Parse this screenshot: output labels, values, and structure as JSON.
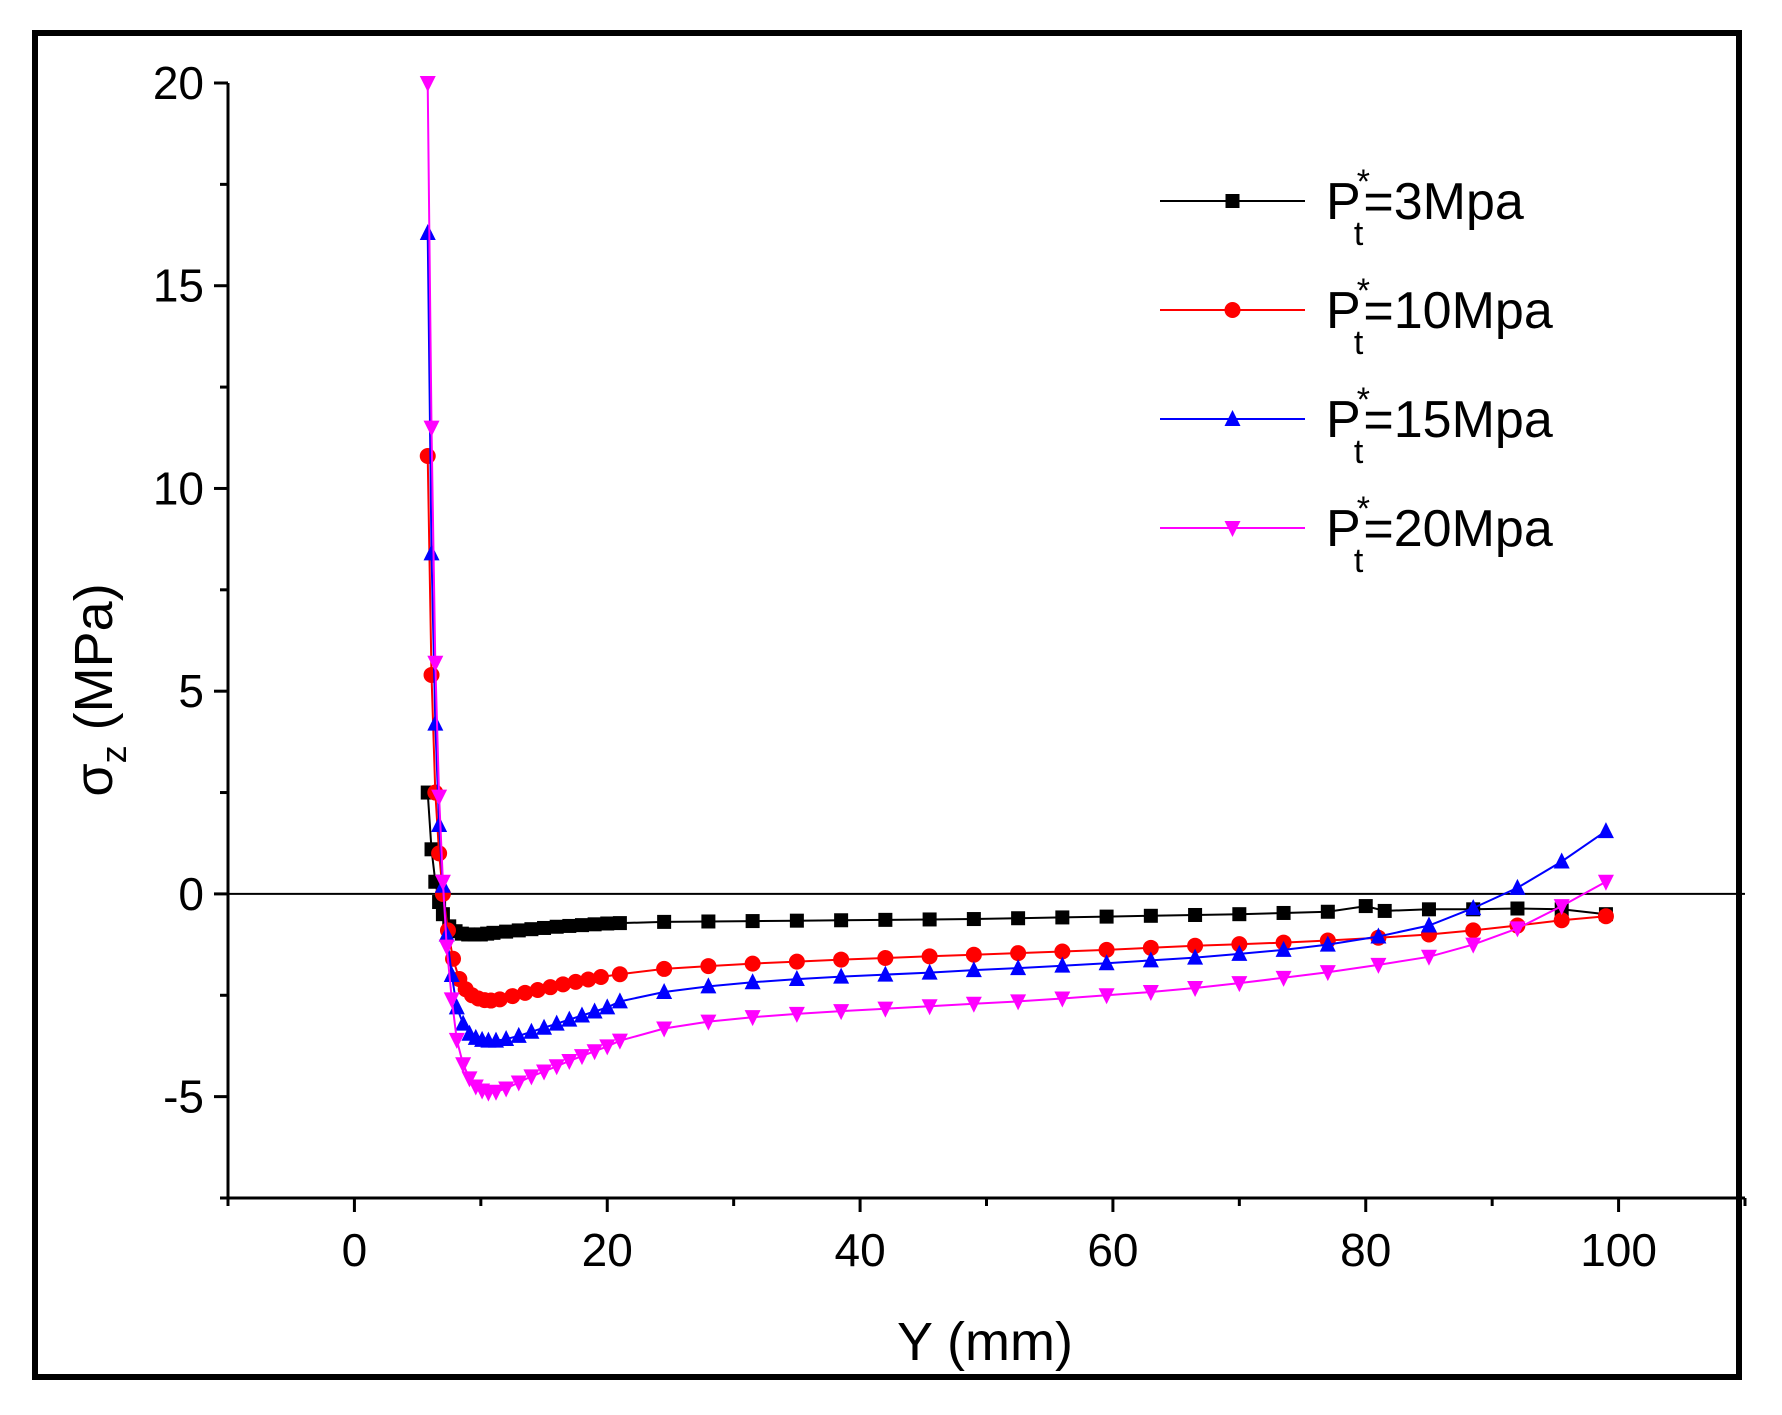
{
  "chart_data": {
    "type": "line",
    "title": "",
    "xlabel": "Y (mm)",
    "ylabel": "σz (MPa)",
    "ylabel_main": "σ",
    "ylabel_sub": "z",
    "ylabel_unit": " (MPa)",
    "xlim": [
      -10,
      110
    ],
    "ylim": [
      -7.5,
      20
    ],
    "xticks": [
      0,
      20,
      40,
      60,
      80,
      100
    ],
    "yticks": [
      -5,
      0,
      5,
      10,
      15,
      20
    ],
    "xtick_labels": [
      "0",
      "20",
      "40",
      "60",
      "80",
      "100"
    ],
    "ytick_labels": [
      "-5",
      "0",
      "5",
      "10",
      "15",
      "20"
    ],
    "reference_line_y": 0,
    "legend_position": "top-right",
    "series": [
      {
        "name": "Pt*=3Mpa",
        "label_main": "P",
        "label_sub": "t",
        "label_sup": "*",
        "label_rest": "=3Mpa",
        "color": "#000000",
        "marker": "square",
        "x": [
          5.8,
          6.1,
          6.4,
          6.7,
          7.0,
          7.5,
          8.0,
          8.5,
          9.0,
          9.5,
          10,
          10.5,
          11,
          12,
          13,
          14,
          15,
          16,
          17,
          18,
          19,
          20,
          21,
          24.5,
          28,
          31.5,
          35,
          38.5,
          42,
          45.5,
          49,
          52.5,
          56,
          59.5,
          63,
          66.5,
          70,
          73.5,
          77,
          80,
          81.5,
          85,
          88.5,
          92,
          95.5,
          99
        ],
        "y": [
          2.5,
          1.1,
          0.3,
          -0.2,
          -0.5,
          -0.8,
          -0.92,
          -0.98,
          -1.0,
          -1.0,
          -1.0,
          -0.98,
          -0.96,
          -0.93,
          -0.9,
          -0.87,
          -0.84,
          -0.81,
          -0.79,
          -0.77,
          -0.75,
          -0.73,
          -0.72,
          -0.69,
          -0.68,
          -0.67,
          -0.66,
          -0.65,
          -0.64,
          -0.63,
          -0.62,
          -0.6,
          -0.58,
          -0.56,
          -0.54,
          -0.52,
          -0.5,
          -0.47,
          -0.44,
          -0.3,
          -0.42,
          -0.38,
          -0.38,
          -0.36,
          -0.38,
          -0.5
        ]
      },
      {
        "name": "Pt*=10Mpa",
        "label_main": "P",
        "label_sub": "t",
        "label_sup": "*",
        "label_rest": "=10Mpa",
        "color": "#ff0000",
        "marker": "circle",
        "x": [
          5.8,
          6.1,
          6.4,
          6.7,
          7.0,
          7.4,
          7.8,
          8.3,
          8.8,
          9.3,
          9.8,
          10.3,
          10.8,
          11.5,
          12.5,
          13.5,
          14.5,
          15.5,
          16.5,
          17.5,
          18.5,
          19.5,
          21,
          24.5,
          28,
          31.5,
          35,
          38.5,
          42,
          45.5,
          49,
          52.5,
          56,
          59.5,
          63,
          66.5,
          70,
          73.5,
          77,
          81,
          85,
          88.5,
          92,
          95.5,
          99
        ],
        "y": [
          10.8,
          5.4,
          2.5,
          1.0,
          0.0,
          -0.9,
          -1.6,
          -2.1,
          -2.35,
          -2.5,
          -2.58,
          -2.62,
          -2.63,
          -2.6,
          -2.52,
          -2.44,
          -2.37,
          -2.3,
          -2.23,
          -2.17,
          -2.11,
          -2.05,
          -1.98,
          -1.85,
          -1.78,
          -1.72,
          -1.67,
          -1.62,
          -1.58,
          -1.54,
          -1.5,
          -1.46,
          -1.42,
          -1.38,
          -1.33,
          -1.28,
          -1.24,
          -1.2,
          -1.15,
          -1.08,
          -1.0,
          -0.9,
          -0.78,
          -0.65,
          -0.55
        ]
      },
      {
        "name": "Pt*=15Mpa",
        "label_main": "P",
        "label_sub": "t",
        "label_sup": "*",
        "label_rest": "=15Mpa",
        "color": "#0000ff",
        "marker": "triangle-up",
        "x": [
          5.8,
          6.1,
          6.4,
          6.7,
          7.0,
          7.3,
          7.7,
          8.1,
          8.6,
          9.1,
          9.6,
          10.1,
          10.6,
          11.2,
          12,
          13,
          14,
          15,
          16,
          17,
          18,
          19,
          20,
          21,
          24.5,
          28,
          31.5,
          35,
          38.5,
          42,
          45.5,
          49,
          52.5,
          56,
          59.5,
          63,
          66.5,
          70,
          73.5,
          77,
          81,
          85,
          88.5,
          92,
          95.5,
          99
        ],
        "y": [
          16.3,
          8.4,
          4.2,
          1.7,
          0.2,
          -1.0,
          -2.0,
          -2.8,
          -3.2,
          -3.45,
          -3.55,
          -3.6,
          -3.62,
          -3.62,
          -3.58,
          -3.5,
          -3.4,
          -3.3,
          -3.2,
          -3.1,
          -3.0,
          -2.9,
          -2.8,
          -2.65,
          -2.42,
          -2.28,
          -2.18,
          -2.1,
          -2.04,
          -1.99,
          -1.94,
          -1.88,
          -1.83,
          -1.77,
          -1.71,
          -1.64,
          -1.57,
          -1.48,
          -1.38,
          -1.25,
          -1.05,
          -0.78,
          -0.35,
          0.15,
          0.8,
          1.55
        ]
      },
      {
        "name": "Pt*=20Mpa",
        "label_main": "P",
        "label_sub": "t",
        "label_sup": "*",
        "label_rest": "=20Mpa",
        "color": "#ff00ff",
        "marker": "triangle-down",
        "x": [
          5.8,
          6.1,
          6.4,
          6.7,
          7.0,
          7.3,
          7.7,
          8.1,
          8.6,
          9.1,
          9.6,
          10.1,
          10.6,
          11.2,
          12,
          13,
          14,
          15,
          16,
          17,
          18,
          19,
          20,
          21,
          24.5,
          28,
          31.5,
          35,
          38.5,
          42,
          45.5,
          49,
          52.5,
          56,
          59.5,
          63,
          66.5,
          70,
          73.5,
          77,
          81,
          85,
          88.5,
          92,
          95.5,
          99
        ],
        "y": [
          20.0,
          11.5,
          5.7,
          2.4,
          0.3,
          -1.3,
          -2.6,
          -3.6,
          -4.2,
          -4.55,
          -4.75,
          -4.85,
          -4.9,
          -4.88,
          -4.8,
          -4.65,
          -4.5,
          -4.38,
          -4.25,
          -4.12,
          -4.0,
          -3.88,
          -3.76,
          -3.62,
          -3.32,
          -3.15,
          -3.04,
          -2.96,
          -2.89,
          -2.83,
          -2.77,
          -2.71,
          -2.65,
          -2.58,
          -2.5,
          -2.42,
          -2.32,
          -2.2,
          -2.07,
          -1.93,
          -1.75,
          -1.55,
          -1.25,
          -0.85,
          -0.3,
          0.3
        ]
      }
    ]
  }
}
